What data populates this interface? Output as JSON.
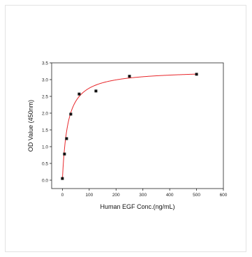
{
  "chart_data": {
    "type": "scatter",
    "xlabel": "Human EGF Conc.(ng/mL)",
    "ylabel": "OD Value (450nm)",
    "xlim": [
      -40,
      600
    ],
    "ylim": [
      -0.25,
      3.5
    ],
    "x_ticks": [
      0,
      100,
      200,
      300,
      400,
      500,
      600
    ],
    "y_ticks": [
      0.0,
      0.5,
      1.0,
      1.5,
      2.0,
      2.5,
      3.0,
      3.5
    ],
    "x_tick_labels": [
      "0",
      "100",
      "200",
      "300",
      "400",
      "500",
      "600"
    ],
    "y_tick_labels": [
      "0.0",
      "0.5",
      "1.0",
      "1.5",
      "2.0",
      "2.5",
      "3.0",
      "3.5"
    ],
    "grid": false,
    "legend": "none",
    "series": [
      {
        "kind": "points",
        "marker": "square",
        "color": "#111111",
        "x": [
          0,
          7.8,
          15.6,
          31.25,
          62.5,
          125,
          250,
          500
        ],
        "y": [
          0.05,
          0.78,
          1.24,
          1.97,
          2.57,
          2.66,
          3.1,
          3.16
        ]
      },
      {
        "kind": "fit-curve",
        "color": "#e8262a",
        "model": "hyperbolic",
        "params": {
          "y0": 0.02,
          "ymax": 3.27,
          "k": 20
        }
      }
    ]
  }
}
